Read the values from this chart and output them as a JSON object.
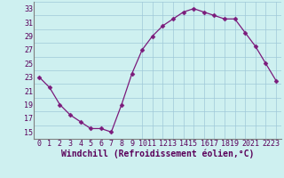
{
  "x": [
    0,
    1,
    2,
    3,
    4,
    5,
    6,
    7,
    8,
    9,
    10,
    11,
    12,
    13,
    14,
    15,
    16,
    17,
    18,
    19,
    20,
    21,
    22,
    23
  ],
  "y": [
    23,
    21.5,
    19,
    17.5,
    16.5,
    15.5,
    15.5,
    15,
    19,
    23.5,
    27,
    29,
    30.5,
    31.5,
    32.5,
    33,
    32.5,
    32,
    31.5,
    31.5,
    29.5,
    27.5,
    25,
    22.5
  ],
  "line_color": "#7b1a7b",
  "marker": "D",
  "marker_size": 2.5,
  "bg_color": "#cef0f0",
  "grid_color": "#a0c8d8",
  "xlabel": "Windchill (Refroidissement éolien,°C)",
  "xlabel_fontsize": 7,
  "tick_fontsize": 6,
  "ylim": [
    14,
    34
  ],
  "yticks": [
    15,
    17,
    19,
    21,
    23,
    25,
    27,
    29,
    31,
    33
  ],
  "xtick_labels": [
    "0",
    "1",
    "2",
    "3",
    "4",
    "5",
    "6",
    "7",
    "8",
    "9",
    "1011",
    "1213",
    "1415",
    "1617",
    "1819",
    "2021",
    "2223"
  ],
  "xtick_positions": [
    0,
    1,
    2,
    3,
    4,
    5,
    6,
    7,
    8,
    9,
    10.5,
    12.5,
    14.5,
    16.5,
    18.5,
    20.5,
    22.5
  ]
}
